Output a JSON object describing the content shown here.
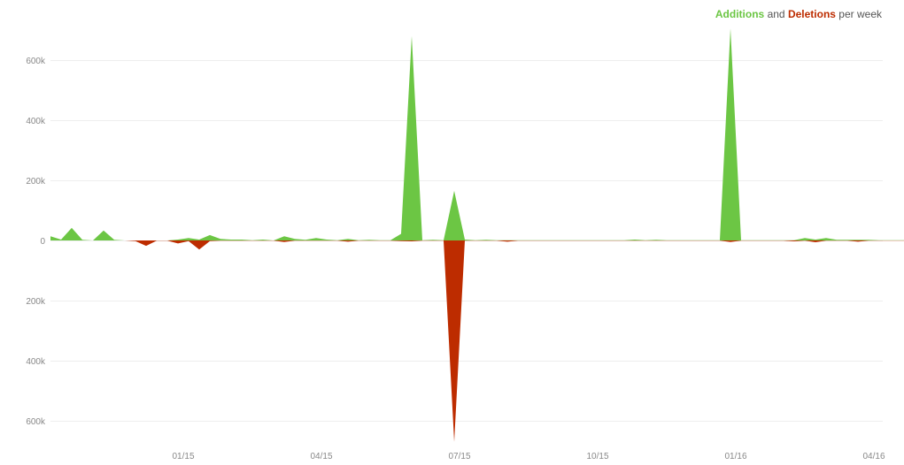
{
  "legend": {
    "additions_label": "Additions",
    "and_text": "and",
    "deletions_label": "Deletions",
    "suffix": "per week"
  },
  "colors": {
    "additions": "#6cc644",
    "deletions": "#bd2c00",
    "grid": "#eeeeee",
    "tick_text": "#888888"
  },
  "chart_data": {
    "type": "area",
    "title": "",
    "xlabel": "",
    "ylabel": "",
    "ylim": [
      -680000,
      700000
    ],
    "grid": true,
    "legend_position": "top-right",
    "y_ticks": [
      {
        "value": 600000,
        "label": "600k"
      },
      {
        "value": 400000,
        "label": "400k"
      },
      {
        "value": 200000,
        "label": "200k"
      },
      {
        "value": 0,
        "label": "0"
      },
      {
        "value": -200000,
        "label": "200k"
      },
      {
        "value": -400000,
        "label": "400k"
      },
      {
        "value": -600000,
        "label": "600k"
      }
    ],
    "x_ticks": [
      {
        "week": 12.5,
        "label": "01/15"
      },
      {
        "week": 25.5,
        "label": "04/15"
      },
      {
        "week": 38.5,
        "label": "07/15"
      },
      {
        "week": 51.5,
        "label": "10/15"
      },
      {
        "week": 64.5,
        "label": "01/16"
      },
      {
        "week": 77.5,
        "label": "04/16"
      }
    ],
    "series": [
      {
        "name": "Additions",
        "values": [
          14000,
          3000,
          42000,
          2000,
          0,
          33000,
          2000,
          0,
          0,
          0,
          0,
          0,
          3000,
          8000,
          3000,
          18000,
          5000,
          3000,
          3000,
          1000,
          3000,
          0,
          14000,
          5000,
          2000,
          8000,
          3000,
          1000,
          5000,
          1000,
          2000,
          1000,
          1000,
          22000,
          680000,
          1000,
          2000,
          1000,
          165000,
          3000,
          1000,
          2000,
          1000,
          1000,
          1000,
          1000,
          1000,
          1000,
          1000,
          1000,
          1000,
          1000,
          1000,
          1000,
          1000,
          3000,
          1000,
          2000,
          1000,
          1000,
          1000,
          1000,
          1000,
          1000,
          705000,
          1000,
          1000,
          1000,
          1000,
          1000,
          1000,
          8000,
          3000,
          8000,
          2000,
          2000,
          2000,
          2000,
          1000,
          1000,
          1000,
          1000,
          2000
        ]
      },
      {
        "name": "Deletions",
        "values": [
          0,
          0,
          0,
          0,
          0,
          0,
          0,
          0,
          -2000,
          -18000,
          -1000,
          -1000,
          -10000,
          -2000,
          -30000,
          -2000,
          -1000,
          -1000,
          -1000,
          -1000,
          -1000,
          -1000,
          -5000,
          -1000,
          -1000,
          -1000,
          -1000,
          -1000,
          -4000,
          -1000,
          -1000,
          -1000,
          -1000,
          -2000,
          -3000,
          -1000,
          -1000,
          -1000,
          -670000,
          -1000,
          -1000,
          -1000,
          -1000,
          -4000,
          -1000,
          -1000,
          -1000,
          -1000,
          -1000,
          -1000,
          -1000,
          -1000,
          -1000,
          -1000,
          -1000,
          -1000,
          -1000,
          -1000,
          -1000,
          -1000,
          -1000,
          -1000,
          -1000,
          -1000,
          -5000,
          -1000,
          -1000,
          -1000,
          -1000,
          -1000,
          -3000,
          -1000,
          -6000,
          -1000,
          -1000,
          -1000,
          -4000,
          -1000,
          -1000,
          -1000,
          -1000,
          -1000,
          -1000
        ]
      }
    ]
  }
}
